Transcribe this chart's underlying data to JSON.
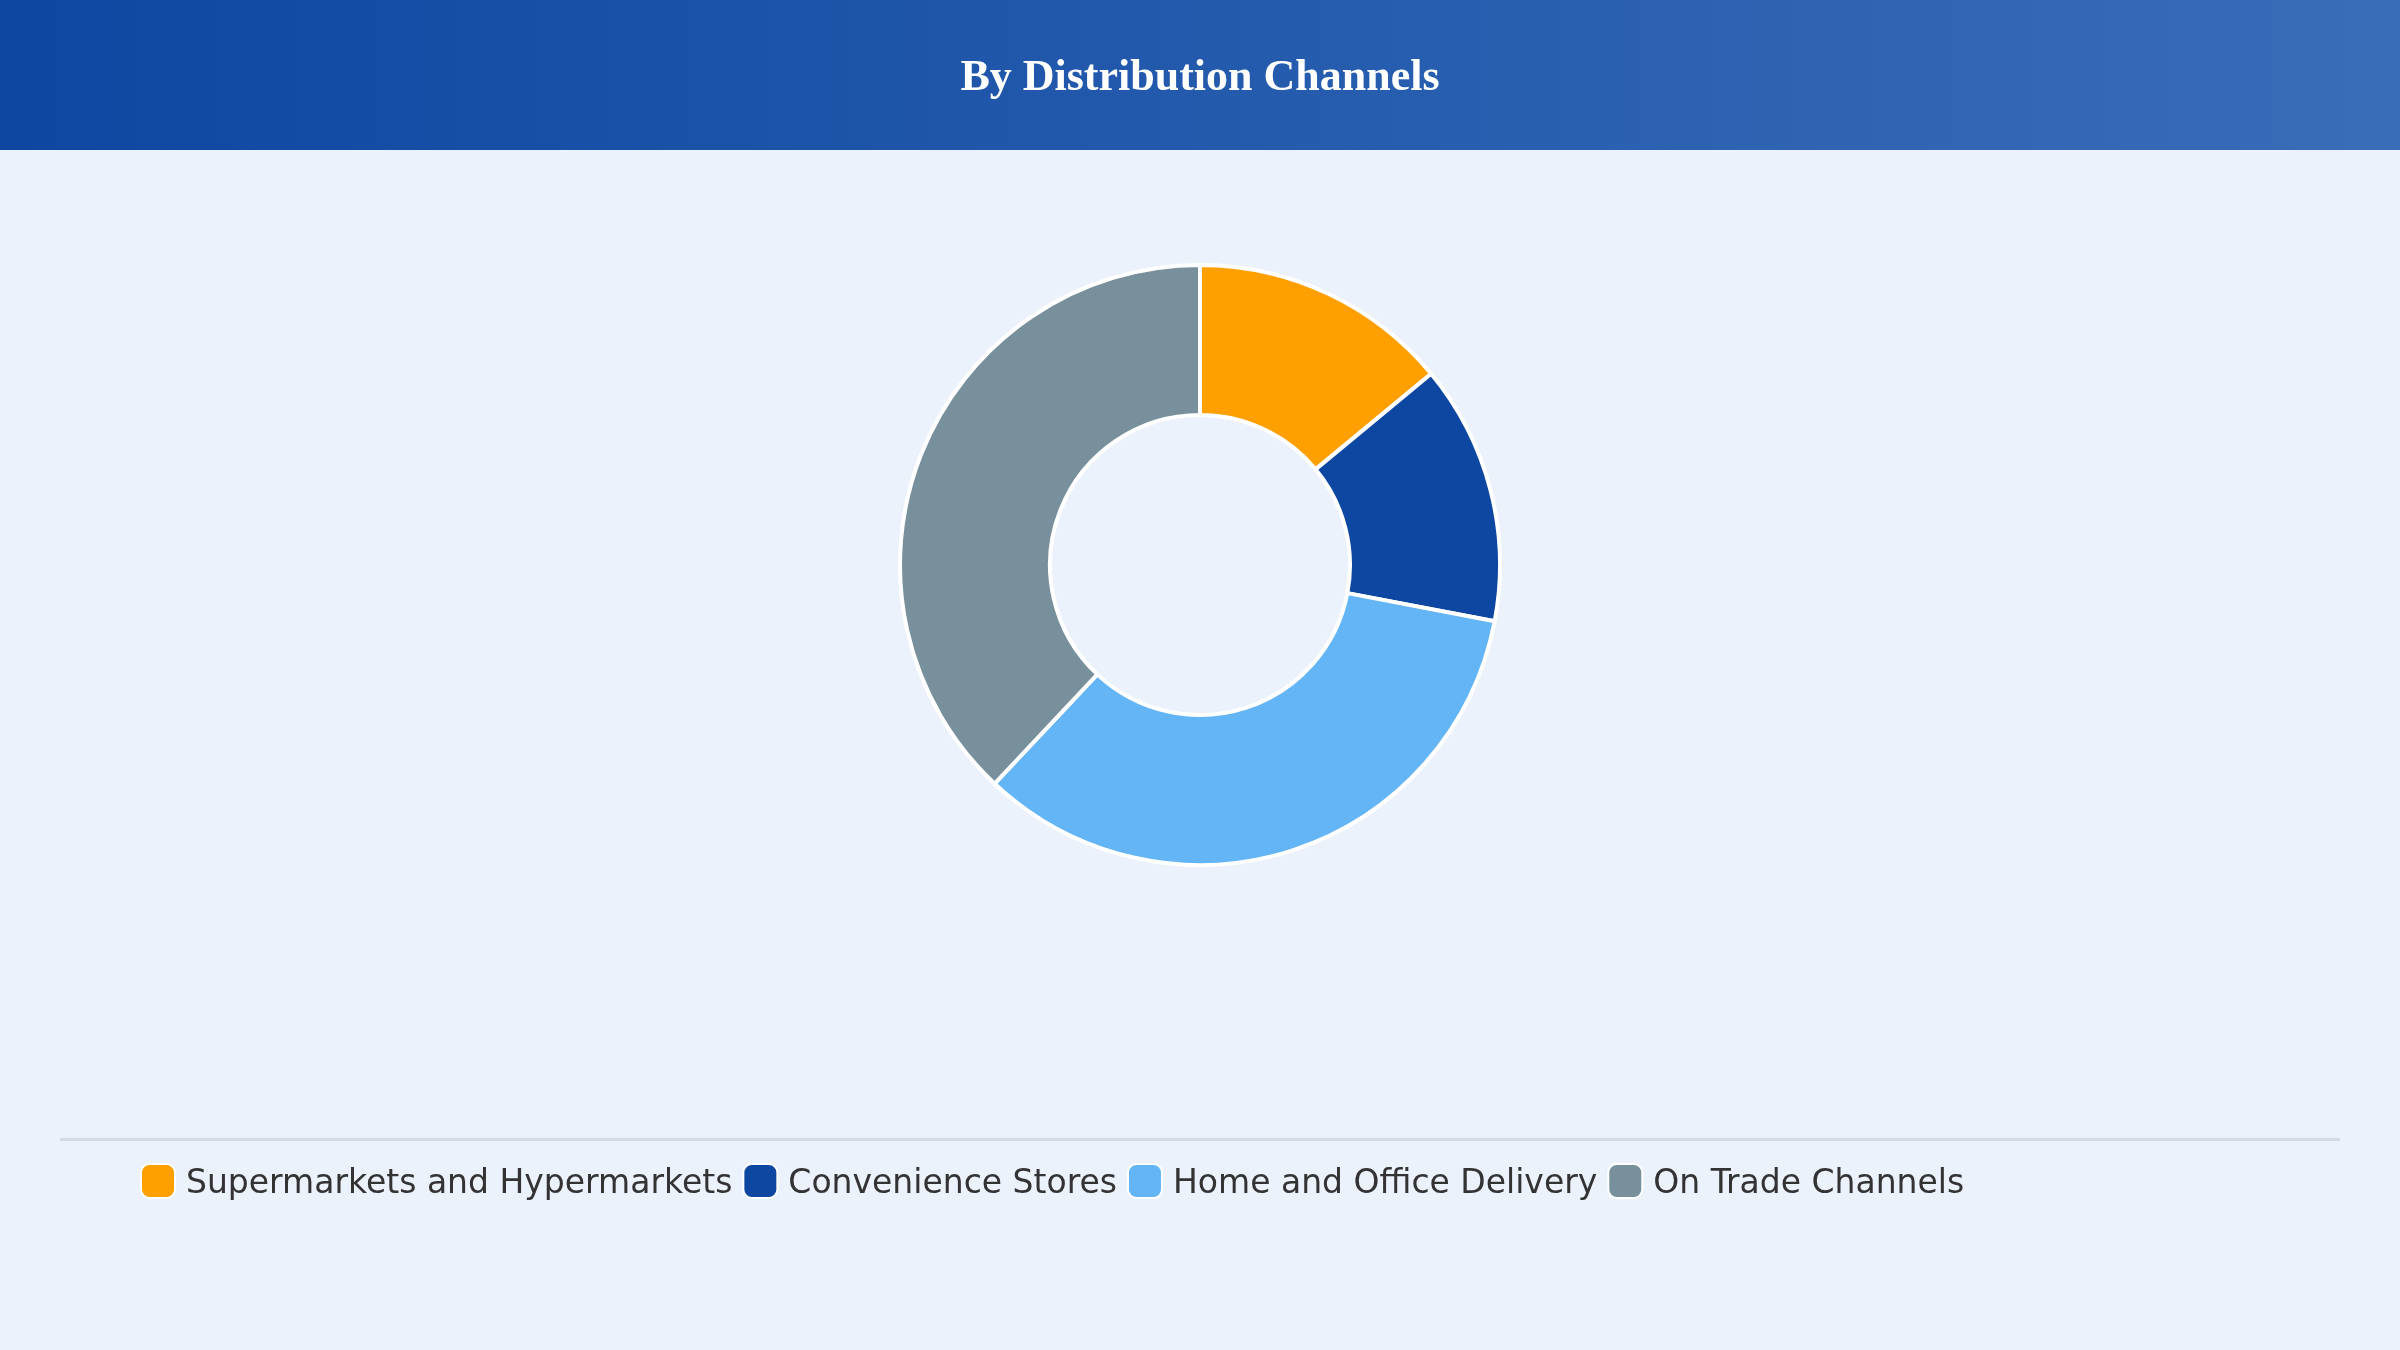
{
  "chart_data": {
    "type": "donut",
    "title": "By Distribution Channels",
    "categories": [
      "Supermarkets and Hypermarkets",
      "Convenience Stores",
      "Home and Office Delivery",
      "On Trade Channels"
    ],
    "values": [
      14,
      14,
      34,
      38
    ],
    "colors": [
      "#ffa000",
      "#0d47a1",
      "#64b5f6",
      "#78909c"
    ],
    "legend": "bottom"
  }
}
